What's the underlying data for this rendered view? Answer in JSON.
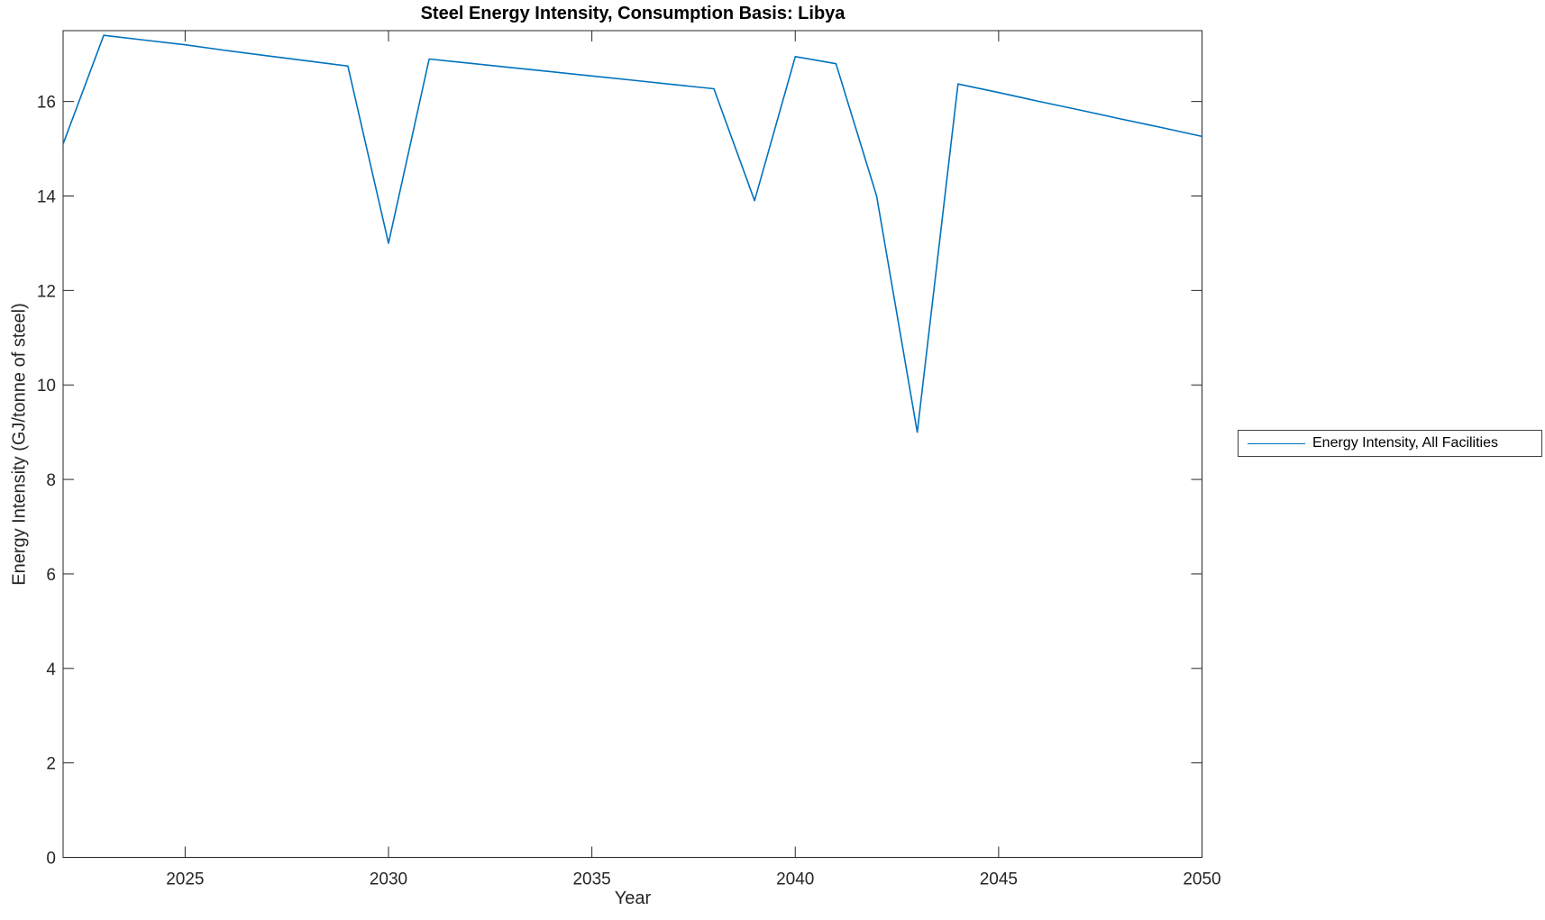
{
  "chart_data": {
    "type": "line",
    "title": "Steel Energy Intensity, Consumption Basis: Libya",
    "xlabel": "Year",
    "ylabel": "Energy Intensity (GJ/tonne of steel)",
    "legend": {
      "entries": [
        "Energy Intensity, All Facilities"
      ],
      "position": "right-outside"
    },
    "colors": {
      "line": "#0072BD",
      "axis": "#262626",
      "background": "#FFFFFF"
    },
    "xlim": [
      2022,
      2050
    ],
    "ylim": [
      0,
      17.5
    ],
    "xticks": [
      2025,
      2030,
      2035,
      2040,
      2045,
      2050
    ],
    "yticks": [
      0,
      2,
      4,
      6,
      8,
      10,
      12,
      14,
      16
    ],
    "grid": false,
    "box": true,
    "series": [
      {
        "name": "Energy Intensity, All Facilities",
        "x": [
          2022,
          2023,
          2024,
          2025,
          2026,
          2027,
          2028,
          2029,
          2030,
          2031,
          2032,
          2033,
          2034,
          2035,
          2036,
          2037,
          2038,
          2039,
          2040,
          2041,
          2042,
          2043,
          2044,
          2045,
          2046,
          2047,
          2048,
          2049,
          2050
        ],
        "y": [
          15.1,
          17.4,
          17.3,
          17.2,
          17.08,
          16.97,
          16.86,
          16.75,
          13.0,
          16.9,
          16.81,
          16.72,
          16.63,
          16.54,
          16.45,
          16.36,
          16.27,
          13.9,
          16.95,
          16.8,
          14.0,
          9.0,
          16.37,
          16.19,
          16.0,
          15.82,
          15.63,
          15.45,
          15.26
        ]
      }
    ]
  }
}
